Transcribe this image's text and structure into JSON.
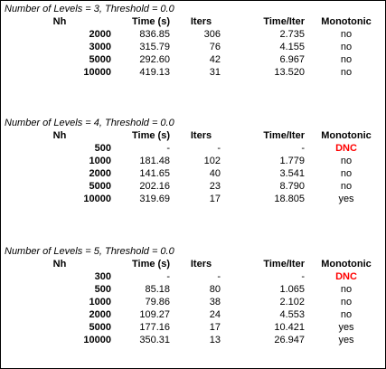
{
  "tables": [
    {
      "caption": "Number of Levels = 3, Threshold = 0.0",
      "headers": {
        "nh": "Nh",
        "time": "Time (s)",
        "iters": "Iters",
        "time_iter": "Time/Iter",
        "monotonic": "Monotonic"
      },
      "rows": [
        {
          "nh": "2000",
          "time": "836.85",
          "iters": "306",
          "time_iter": "2.735",
          "monotonic": "no"
        },
        {
          "nh": "3000",
          "time": "315.79",
          "iters": "76",
          "time_iter": "4.155",
          "monotonic": "no"
        },
        {
          "nh": "5000",
          "time": "292.60",
          "iters": "42",
          "time_iter": "6.967",
          "monotonic": "no"
        },
        {
          "nh": "10000",
          "time": "419.13",
          "iters": "31",
          "time_iter": "13.520",
          "monotonic": "no"
        }
      ]
    },
    {
      "caption": "Number of Levels = 4, Threshold = 0.0",
      "headers": {
        "nh": "Nh",
        "time": "Time (s)",
        "iters": "Iters",
        "time_iter": "Time/Iter",
        "monotonic": "Monotonic"
      },
      "rows": [
        {
          "nh": "500",
          "time": "-",
          "iters": "-",
          "time_iter": "-",
          "monotonic": "DNC"
        },
        {
          "nh": "1000",
          "time": "181.48",
          "iters": "102",
          "time_iter": "1.779",
          "monotonic": "no"
        },
        {
          "nh": "2000",
          "time": "141.65",
          "iters": "40",
          "time_iter": "3.541",
          "monotonic": "no"
        },
        {
          "nh": "5000",
          "time": "202.16",
          "iters": "23",
          "time_iter": "8.790",
          "monotonic": "no"
        },
        {
          "nh": "10000",
          "time": "319.69",
          "iters": "17",
          "time_iter": "18.805",
          "monotonic": "yes"
        }
      ]
    },
    {
      "caption": "Number of Levels = 5, Threshold = 0.0",
      "headers": {
        "nh": "Nh",
        "time": "Time (s)",
        "iters": "Iters",
        "time_iter": "Time/Iter",
        "monotonic": "Monotonic"
      },
      "rows": [
        {
          "nh": "300",
          "time": "-",
          "iters": "-",
          "time_iter": "-",
          "monotonic": "DNC"
        },
        {
          "nh": "500",
          "time": "85.18",
          "iters": "80",
          "time_iter": "1.065",
          "monotonic": "no"
        },
        {
          "nh": "1000",
          "time": "79.86",
          "iters": "38",
          "time_iter": "2.102",
          "monotonic": "no"
        },
        {
          "nh": "2000",
          "time": "109.27",
          "iters": "24",
          "time_iter": "4.553",
          "monotonic": "no"
        },
        {
          "nh": "5000",
          "time": "177.16",
          "iters": "17",
          "time_iter": "10.421",
          "monotonic": "yes"
        },
        {
          "nh": "10000",
          "time": "350.31",
          "iters": "13",
          "time_iter": "26.947",
          "monotonic": "yes"
        }
      ]
    }
  ],
  "colors": {
    "dnc": "#ff0000",
    "border": "#000000",
    "background": "#ffffff"
  }
}
